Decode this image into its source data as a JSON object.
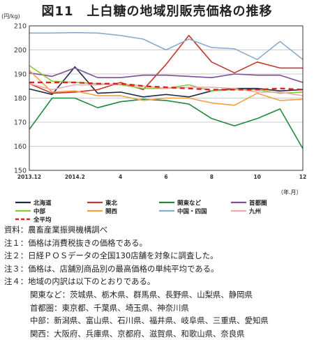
{
  "chart_data": {
    "type": "line",
    "title": "図11　上白糖の地域別販売価格の推移",
    "ylabel": "(円/kg)",
    "xlabel": "（年.月）",
    "ylim": [
      150,
      210
    ],
    "yticks": [
      150,
      160,
      170,
      180,
      190,
      200,
      210
    ],
    "x_tick_labels": [
      "2013.12",
      "2014.2",
      "4",
      "6",
      "8",
      "10",
      "12"
    ],
    "x_tick_index": [
      0,
      2,
      4,
      6,
      8,
      10,
      12
    ],
    "grid": true,
    "legend_placement": "bottom",
    "series": [
      {
        "name": "北海道",
        "color": "#1f2a44",
        "dash": "",
        "values": [
          183.8,
          181.5,
          193,
          182.0,
          182.5,
          180.5,
          181.5,
          180.5,
          183,
          184,
          184,
          183,
          183.5
        ]
      },
      {
        "name": "東北",
        "color": "#c0392b",
        "dash": "",
        "values": [
          186,
          182,
          182.5,
          183.5,
          186.5,
          183.5,
          194,
          206,
          195,
          190.5,
          195,
          192.5,
          192.5
        ]
      },
      {
        "name": "関東など",
        "color": "#1e8a3a",
        "dash": "",
        "values": [
          167,
          180,
          180,
          176,
          178.5,
          179.5,
          179,
          177.5,
          171.5,
          168.5,
          171.5,
          175.5,
          159
        ]
      },
      {
        "name": "首都圏",
        "color": "#7b4f9d",
        "dash": "",
        "values": [
          190.5,
          189,
          192.5,
          188.5,
          188.5,
          189.5,
          189.5,
          189,
          188.5,
          190,
          189.5,
          189.5,
          186.5
        ]
      },
      {
        "name": "中部",
        "color": "#8cc63f",
        "dash": "",
        "values": [
          193.5,
          187,
          186.5,
          186,
          185.5,
          184,
          184,
          185.5,
          183,
          183.5,
          183.5,
          182,
          182.5
        ]
      },
      {
        "name": "関西",
        "color": "#f0a040",
        "dash": "",
        "values": [
          191.5,
          182.5,
          183,
          181,
          181,
          179,
          180,
          180,
          178,
          177,
          182,
          179,
          179.5
        ]
      },
      {
        "name": "中国・四国",
        "color": "#8aaccf",
        "dash": "",
        "values": [
          207,
          207,
          207.2,
          207,
          206,
          204.5,
          200,
          204.5,
          201,
          200.5,
          196,
          203.5,
          196
        ]
      },
      {
        "name": "九州",
        "color": "#f0a8b0",
        "dash": "",
        "values": [
          186,
          183.5,
          185.5,
          185.5,
          186,
          185,
          184,
          184.5,
          184.5,
          184,
          182.5,
          182.5,
          181
        ]
      },
      {
        "name": "全平均",
        "color": "#e02020",
        "dash": "7,5",
        "values": [
          186.5,
          186.5,
          186.5,
          186,
          186,
          185,
          184.5,
          184,
          183.5,
          183.5,
          183.5,
          184,
          183.5
        ]
      }
    ]
  },
  "notes": [
    "資料：農畜産業振興機構調べ",
    "注１：価格は消費税抜きの価格である。",
    "注２：日経ＰＯＳデータの全国130店舗を対象に調査した。",
    "注３：価格は、店舗別商品別の最高価格の単純平均である。",
    "注４：地域の内訳は以下のとおりである。",
    "関東など：茨城県、栃木県、群馬県、長野県、山梨県、静岡県",
    "首都圏：東京都、千葉県、埼玉県、神奈川県",
    "中部：新潟県、富山県、石川県、福井県、岐阜県、三重県、愛知県",
    "関西：大阪府、兵庫県、京都府、滋賀県、和歌山県、奈良県"
  ]
}
